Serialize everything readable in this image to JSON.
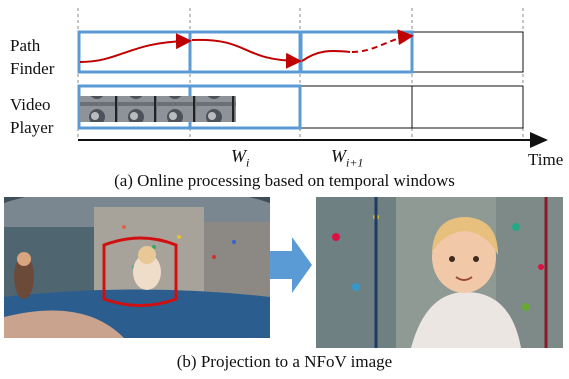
{
  "rows": {
    "path_finder": [
      "Path",
      "Finder"
    ],
    "video_player": [
      "Video",
      "Player"
    ]
  },
  "timeline": {
    "window_labels": [
      {
        "base": "W",
        "sub": "i"
      },
      {
        "base": "W",
        "sub": "i+1"
      }
    ],
    "time_label": "Time"
  },
  "captions": {
    "a": "(a) Online processing based on temporal windows",
    "b": "(b) Projection to a NFoV image"
  },
  "colors": {
    "window_blue": "#5b9bd5",
    "path_red": "#c00000",
    "arrow_blue": "#5b9bd5"
  }
}
